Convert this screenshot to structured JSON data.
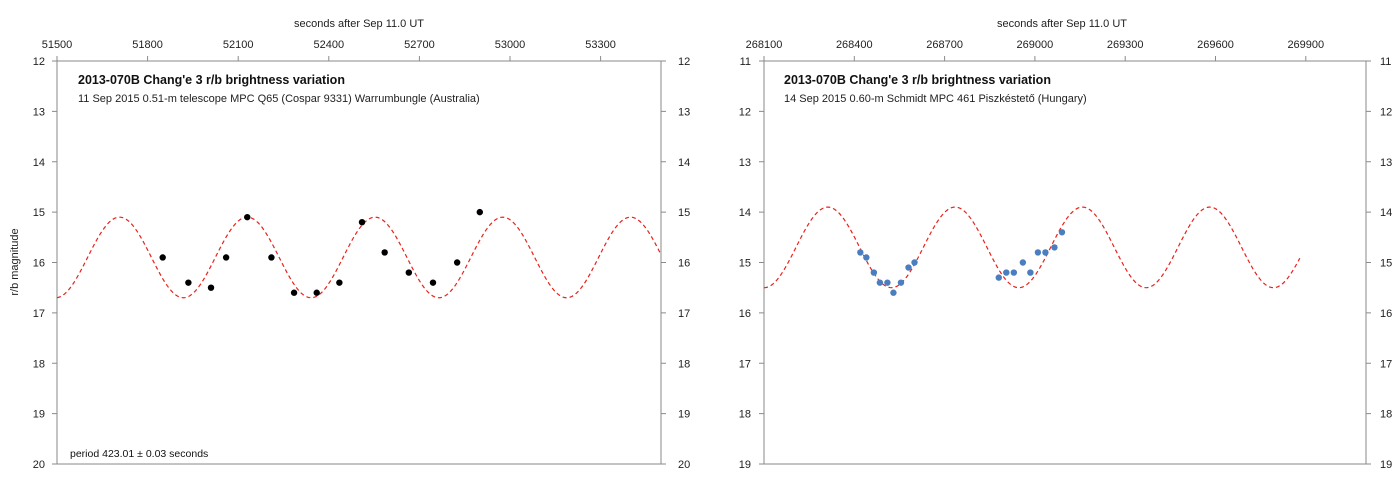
{
  "chart_data": [
    {
      "type": "scatter",
      "title": "2013-070B  Chang'e 3 r/b  brightness variation",
      "subtitle": "11 Sep 2015   0.51-m telescope MPC Q65 (Cospar 9331) Warrumbungle (Australia)",
      "top_xlabel": "seconds after Sep 11.0 UT",
      "ylabel": "r/b magnitude",
      "note": "period  423.01  ±  0.03  seconds",
      "xlim": [
        51500,
        53500
      ],
      "ylim": [
        12,
        20
      ],
      "y_inverted": true,
      "x_ticks": [
        51500,
        51800,
        52100,
        52400,
        52700,
        53000,
        53300
      ],
      "y_ticks": [
        12,
        13,
        14,
        15,
        16,
        17,
        18,
        19,
        20
      ],
      "marker_color": "#000000",
      "curve_color": "#e8221b",
      "curve": {
        "style": "dashed",
        "mean": 15.9,
        "amplitude": 0.8,
        "period": 423.01,
        "peak_at": 52130
      },
      "series": [
        {
          "x": [
            51850,
            51935,
            52010,
            52060,
            52130,
            52210,
            52285,
            52360,
            52435,
            52510,
            52585,
            52665,
            52745,
            52825,
            52900
          ],
          "y": [
            15.9,
            16.4,
            16.5,
            15.9,
            15.1,
            15.9,
            16.6,
            16.6,
            16.4,
            15.2,
            15.8,
            16.2,
            16.4,
            16.0,
            15.0
          ]
        }
      ]
    },
    {
      "type": "scatter",
      "title": "2013-070B  Chang'e 3 r/b  brightness variation",
      "subtitle": "14 Sep 2015   0.60-m Schmidt    MPC  461  Piszkéstető (Hungary)",
      "top_xlabel": "seconds after Sep 11.0 UT",
      "ylabel": "",
      "xlim": [
        268100,
        270100
      ],
      "ylim": [
        11,
        19
      ],
      "y_inverted": true,
      "x_ticks": [
        268100,
        268400,
        268700,
        269000,
        269300,
        269600,
        269900
      ],
      "y_ticks": [
        11,
        12,
        13,
        14,
        15,
        16,
        17,
        18,
        19
      ],
      "marker_color": "#4a7ebf",
      "curve_color": "#e8221b",
      "curve": {
        "style": "dashed",
        "mean": 14.7,
        "amplitude": 0.8,
        "period": 423.01,
        "peak_at": 268735,
        "x_start": 268100,
        "x_end": 269880
      },
      "series": [
        {
          "x": [
            268420,
            268440,
            268465,
            268485,
            268510,
            268530,
            268555,
            268580,
            268600,
            268880,
            268905,
            268930,
            268960,
            268985,
            269010,
            269035,
            269065,
            269090
          ],
          "y": [
            14.8,
            14.9,
            15.2,
            15.4,
            15.4,
            15.6,
            15.4,
            15.1,
            15.0,
            15.3,
            15.2,
            15.2,
            15.0,
            15.2,
            14.8,
            14.8,
            14.7,
            14.4
          ]
        }
      ]
    }
  ]
}
